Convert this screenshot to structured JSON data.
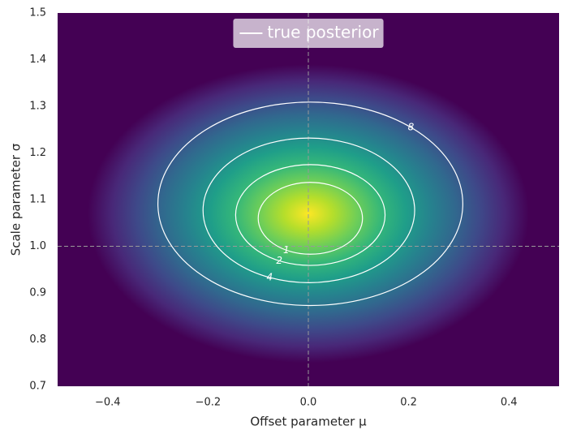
{
  "chart_data": {
    "type": "contour",
    "xlabel": "Offset parameter μ",
    "ylabel": "Scale parameter σ",
    "xlim": [
      -0.5,
      0.5
    ],
    "ylim": [
      0.7,
      1.5
    ],
    "xticks": [
      {
        "value": -0.4,
        "label": "−0.4"
      },
      {
        "value": -0.2,
        "label": "−0.2"
      },
      {
        "value": 0,
        "label": "0.0"
      },
      0.2,
      0.4
    ],
    "yticks": [
      0.7,
      0.8,
      0.9,
      {
        "value": 1,
        "label": "1.0"
      },
      1.1,
      1.2,
      1.3,
      1.4,
      1.5
    ],
    "reference_lines": {
      "x": 0,
      "y": 1
    },
    "density": {
      "center": [
        0,
        1.07
      ],
      "half_width": 0.44,
      "half_height": 0.32
    },
    "colormap": [
      "#fde725",
      "#b5de2b",
      "#6ece58",
      "#35b779",
      "#1f9e89",
      "#26828e",
      "#31688e",
      "#3e4989",
      "#482878",
      "#440154"
    ],
    "series": [
      {
        "name": "true posterior",
        "color": "#ffffff"
      }
    ],
    "legend": "upper center",
    "contours": [
      {
        "level": 1,
        "center": [
          0.004,
          1.06
        ],
        "half_width": 0.104,
        "half_height": 0.077
      },
      {
        "level": 2,
        "center": [
          0.004,
          1.067
        ],
        "half_width": 0.149,
        "half_height": 0.108
      },
      {
        "level": 4,
        "center": [
          0.001,
          1.077
        ],
        "half_width": 0.211,
        "half_height": 0.155
      },
      {
        "level": 8,
        "center": [
          0.004,
          1.091
        ],
        "half_width": 0.304,
        "half_height": 0.218
      }
    ]
  }
}
